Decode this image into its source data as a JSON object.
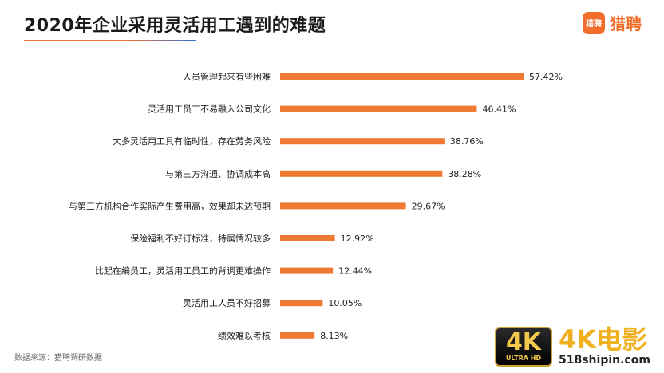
{
  "header": {
    "title": "2020年企业采用灵活用工遇到的难题",
    "logo_mark_text": "猎聘",
    "logo_text": "猎聘"
  },
  "colors": {
    "bar": "#ee7a33",
    "accent": "#f26d2a"
  },
  "chart_data": {
    "type": "bar",
    "orientation": "horizontal",
    "title": "2020年企业采用灵活用工遇到的难题",
    "categories": [
      "人员管理起来有些困难",
      "灵活用工员工不易融入公司文化",
      "大多灵活用工具有临时性，存在劳务风险",
      "与第三方沟通、协调成本高",
      "与第三方机构合作实际产生费用高，效果却未达预期",
      "保险福利不好订标准，特属情况较多",
      "比起在编员工，灵活用工员工的背调更难操作",
      "灵活用工人员不好招募",
      "绩效难以考核"
    ],
    "values": [
      57.42,
      46.41,
      38.76,
      38.28,
      29.67,
      12.92,
      12.44,
      10.05,
      8.13
    ],
    "value_labels": [
      "57.42%",
      "46.41%",
      "38.76%",
      "38.28%",
      "29.67%",
      "12.92%",
      "12.44%",
      "10.05%",
      "8.13%"
    ],
    "xlim": [
      0,
      57.42
    ],
    "grid": false,
    "xlabel": "",
    "ylabel": ""
  },
  "footer": {
    "source": "数据来源：猎聘调研数据"
  },
  "watermark": {
    "badge_big": "4K",
    "badge_small": "ULTRA HD",
    "title": "4K电影",
    "url": "518shipin.com"
  }
}
